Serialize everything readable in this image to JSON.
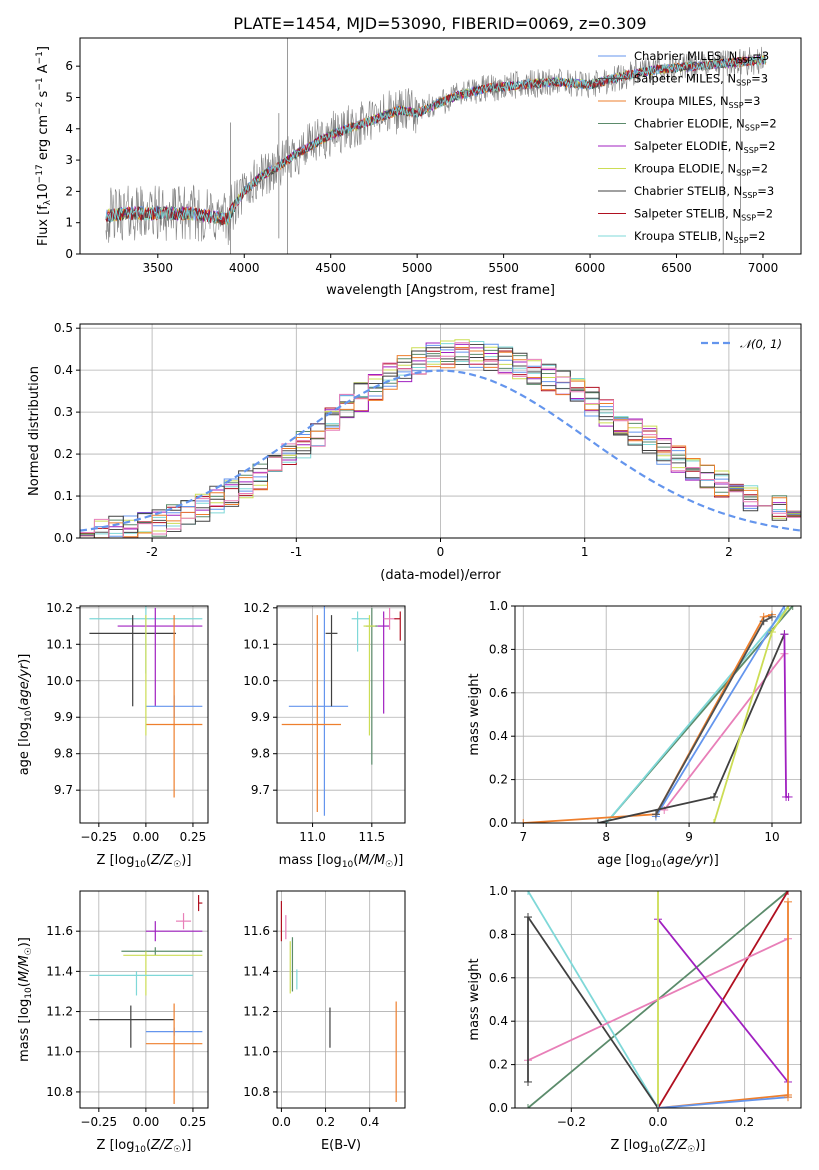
{
  "figure": {
    "title": "PLATE=1454, MJD=53090, FIBERID=0069, z=0.309"
  },
  "colors": {
    "grid": "#b0b0b0",
    "data_spectrum": "#808080",
    "Chabrier MILES": "#6495ed",
    "Salpeter MILES": "#4f4f4f",
    "Kroupa MILES": "#ee7f2d",
    "Chabrier ELODIE": "#5b8b6b",
    "Salpeter ELODIE": "#a020c0",
    "Kroupa ELODIE": "#ccdd55",
    "Chabrier STELIB": "#404040",
    "Salpeter STELIB": "#b01020",
    "Kroupa STELIB": "#7fd8d8",
    "extra_pink": "#e87fb8"
  },
  "chart_data": [
    {
      "id": "spectrum",
      "type": "line",
      "title": "PLATE=1454, MJD=53090, FIBERID=0069, z=0.309",
      "xlabel": "wavelength [Angstrom, rest frame]",
      "ylabel": "Flux [f_λ 10^-17 erg cm^-2 s^-1 A^-1]",
      "xlim": [
        3050,
        7220
      ],
      "ylim": [
        0,
        6.9
      ],
      "xticks": [
        3500,
        4000,
        4500,
        5000,
        5500,
        6000,
        6500,
        7000
      ],
      "yticks": [
        0,
        1,
        2,
        3,
        4,
        5,
        6
      ],
      "grid": false,
      "legend_position": "right",
      "series": [
        {
          "name": "Chabrier MILES",
          "sub": "SSP",
          "eq": "=3"
        },
        {
          "name": "Salpeter MILES",
          "sub": "SSP",
          "eq": "=3"
        },
        {
          "name": "Kroupa MILES",
          "sub": "SSP",
          "eq": "=3"
        },
        {
          "name": "Chabrier ELODIE",
          "sub": "SSP",
          "eq": "=2"
        },
        {
          "name": "Salpeter ELODIE",
          "sub": "SSP",
          "eq": "=2"
        },
        {
          "name": "Kroupa ELODIE",
          "sub": "SSP",
          "eq": "=2"
        },
        {
          "name": "Chabrier STELIB",
          "sub": "SSP",
          "eq": "=3"
        },
        {
          "name": "Salpeter STELIB",
          "sub": "SSP",
          "eq": "=2"
        },
        {
          "name": "Kroupa STELIB",
          "sub": "SSP",
          "eq": "=2"
        }
      ],
      "continuum": {
        "x": [
          3200,
          3300,
          3500,
          3700,
          3800,
          3900,
          3950,
          4000,
          4100,
          4200,
          4300,
          4500,
          4700,
          4900,
          5000,
          5200,
          5400,
          5600,
          5800,
          6000,
          6200,
          6400,
          6600,
          6800,
          7000
        ],
        "y": [
          1.2,
          1.3,
          1.3,
          1.3,
          1.2,
          1.1,
          1.6,
          2.0,
          2.5,
          2.8,
          3.2,
          3.8,
          4.2,
          4.6,
          4.5,
          5.0,
          5.3,
          5.4,
          5.5,
          5.4,
          5.7,
          5.9,
          6.0,
          6.1,
          6.2
        ]
      }
    },
    {
      "id": "residuals",
      "type": "histogram",
      "xlabel": "(data-model)/error",
      "ylabel": "Normed distribution",
      "xlim": [
        -2.5,
        2.5
      ],
      "ylim": [
        0,
        0.51
      ],
      "xticks": [
        -2,
        -1,
        0,
        1,
        2
      ],
      "yticks": [
        0.0,
        0.1,
        0.2,
        0.3,
        0.4,
        0.5
      ],
      "grid": true,
      "legend_position": "upper right",
      "gaussian_legend": "𝒩(0, 1)",
      "bin_width": 0.1,
      "bin_start": -2.5
    },
    {
      "id": "age-vs-metallicity",
      "type": "scatter",
      "xlabel": "Z [log10(Z/Z☉)]",
      "ylabel": "age [log10(age/yr)]",
      "xlim": [
        -0.35,
        0.33
      ],
      "ylim": [
        9.61,
        10.205
      ],
      "xticks": [
        -0.25,
        0.0,
        0.25
      ],
      "yticks": [
        9.7,
        9.8,
        9.9,
        10.0,
        10.1,
        10.2
      ],
      "grid": true,
      "errorbars": [
        {
          "series": "Kroupa STELIB",
          "x": 0.0,
          "y": 10.17,
          "xerr": [
            0.3,
            0.3
          ],
          "yerr": [
            0.15,
            0.05
          ]
        },
        {
          "series": "Chabrier STELIB",
          "x": -0.07,
          "y": 10.13,
          "xerr": [
            0.23,
            0.23
          ],
          "yerr": [
            0.2,
            0.05
          ]
        },
        {
          "series": "Salpeter ELODIE",
          "x": 0.05,
          "y": 10.15,
          "xerr": [
            0.2,
            0.25
          ],
          "yerr": [
            0.22,
            0.05
          ]
        },
        {
          "series": "Chabrier MILES",
          "x": 0.15,
          "y": 9.93,
          "xerr": [
            0.15,
            0.15
          ],
          "yerr": [
            0.03,
            0.03
          ]
        },
        {
          "series": "Kroupa MILES",
          "x": 0.15,
          "y": 9.88,
          "xerr": [
            0.15,
            0.15
          ],
          "yerr": [
            0.2,
            0.3
          ]
        },
        {
          "series": "Kroupa ELODIE",
          "x": 0.0,
          "y": 10.15,
          "xerr": [
            0.0,
            0.0
          ],
          "yerr": [
            0.3,
            0.03
          ]
        }
      ]
    },
    {
      "id": "age-vs-mass",
      "type": "scatter",
      "xlabel": "mass [log10(M/M☉)]",
      "ylabel": "",
      "xlim": [
        10.7,
        11.78
      ],
      "ylim": [
        9.61,
        10.205
      ],
      "xticks": [
        11.0,
        11.5
      ],
      "yticks": [
        9.7,
        9.8,
        9.9,
        10.0,
        10.1,
        10.2
      ],
      "grid": true,
      "errorbars": [
        {
          "series": "Chabrier MILES",
          "x": 11.1,
          "y": 9.93,
          "xerr": [
            0.3,
            0.2
          ],
          "yerr": [
            0.3,
            0.3
          ]
        },
        {
          "series": "Kroupa MILES",
          "x": 11.04,
          "y": 9.88,
          "xerr": [
            0.3,
            0.2
          ],
          "yerr": [
            0.24,
            0.3
          ]
        },
        {
          "series": "Chabrier STELIB",
          "x": 11.16,
          "y": 10.13,
          "xerr": [
            0.05,
            0.05
          ],
          "yerr": [
            0.2,
            0.05
          ]
        },
        {
          "series": "Kroupa STELIB",
          "x": 11.38,
          "y": 10.17,
          "xerr": [
            0.05,
            0.1
          ],
          "yerr": [
            0.09,
            0.02
          ]
        },
        {
          "series": "Chabrier ELODIE",
          "x": 11.5,
          "y": 10.15,
          "xerr": [
            0.05,
            0.05
          ],
          "yerr": [
            0.38,
            0.05
          ]
        },
        {
          "series": "Kroupa ELODIE",
          "x": 11.48,
          "y": 10.15,
          "xerr": [
            0.05,
            0.05
          ],
          "yerr": [
            0.3,
            0.03
          ]
        },
        {
          "series": "Salpeter ELODIE",
          "x": 11.6,
          "y": 10.15,
          "xerr": [
            0.05,
            0.05
          ],
          "yerr": [
            0.24,
            0.04
          ]
        },
        {
          "series": "extra_pink",
          "x": 11.65,
          "y": 10.17,
          "xerr": [
            0.05,
            0.05
          ],
          "yerr": [
            0.03,
            0.03
          ]
        },
        {
          "series": "Salpeter STELIB",
          "x": 11.74,
          "y": 10.17,
          "xerr": [
            0.05,
            0.0
          ],
          "yerr": [
            0.06,
            0.02
          ]
        }
      ]
    },
    {
      "id": "mass-weight-vs-age",
      "type": "line",
      "xlabel": "age [log10(age/yr)]",
      "ylabel": "mass weight",
      "xlim": [
        6.9,
        10.35
      ],
      "ylim": [
        0,
        1
      ],
      "xticks": [
        7,
        8,
        9,
        10
      ],
      "yticks": [
        0.0,
        0.2,
        0.4,
        0.6,
        0.8,
        1.0
      ],
      "grid": true,
      "series": [
        {
          "key": "Chabrier ELODIE",
          "x": [
            8.0,
            10.25
          ],
          "y": [
            0.0,
            1.0
          ]
        },
        {
          "key": "Kroupa STELIB",
          "x": [
            8.0,
            10.2
          ],
          "y": [
            0.0,
            1.0
          ]
        },
        {
          "key": "Chabrier MILES",
          "x": [
            8.6,
            10.15
          ],
          "y": [
            0.03,
            1.0
          ]
        },
        {
          "key": "Kroupa MILES",
          "x": [
            7.0,
            8.6,
            9.9,
            10.0
          ],
          "y": [
            0.0,
            0.04,
            0.95,
            0.96
          ]
        },
        {
          "key": "Salpeter MILES",
          "x": [
            8.6,
            9.9,
            10.0
          ],
          "y": [
            0.04,
            0.93,
            0.95
          ]
        },
        {
          "key": "extra_pink",
          "x": [
            8.7,
            10.15
          ],
          "y": [
            0.06,
            0.78
          ]
        },
        {
          "key": "Chabrier STELIB",
          "x": [
            7.9,
            9.3,
            10.15
          ],
          "y": [
            0.0,
            0.12,
            0.87
          ]
        },
        {
          "key": "Kroupa ELODIE",
          "x": [
            9.3,
            10.0,
            10.2
          ],
          "y": [
            0.0,
            0.88,
            1.0
          ]
        },
        {
          "key": "Salpeter ELODIE",
          "x": [
            10.15,
            10.17,
            10.2
          ],
          "y": [
            0.87,
            0.12,
            0.12
          ]
        }
      ]
    },
    {
      "id": "mass-vs-metallicity",
      "type": "scatter",
      "xlabel": "Z [log10(Z/Z☉)]",
      "ylabel": "mass [log10(M/M☉)]",
      "xlim": [
        -0.35,
        0.33
      ],
      "ylim": [
        10.72,
        11.8
      ],
      "xticks": [
        -0.25,
        0.0,
        0.25
      ],
      "yticks": [
        10.8,
        11.0,
        11.2,
        11.4,
        11.6
      ],
      "grid": true,
      "errorbars": [
        {
          "series": "Salpeter ELODIE",
          "x": 0.05,
          "y": 11.6,
          "xerr": [
            0.05,
            0.25
          ],
          "yerr": [
            0.05,
            0.05
          ]
        },
        {
          "series": "extra_pink",
          "x": 0.2,
          "y": 11.65,
          "xerr": [
            0.04,
            0.04
          ],
          "yerr": [
            0.04,
            0.04
          ]
        },
        {
          "series": "Salpeter STELIB",
          "x": 0.28,
          "y": 11.74,
          "xerr": [
            0.0,
            0.02
          ],
          "yerr": [
            0.04,
            0.04
          ]
        },
        {
          "series": "Chabrier ELODIE",
          "x": 0.05,
          "y": 11.5,
          "xerr": [
            0.18,
            0.25
          ],
          "yerr": [
            0.02,
            0.02
          ]
        },
        {
          "series": "Kroupa ELODIE",
          "x": 0.0,
          "y": 11.48,
          "xerr": [
            0.12,
            0.3
          ],
          "yerr": [
            0.2,
            0.02
          ]
        },
        {
          "series": "Kroupa STELIB",
          "x": -0.05,
          "y": 11.38,
          "xerr": [
            0.25,
            0.3
          ],
          "yerr": [
            0.1,
            0.02
          ]
        },
        {
          "series": "Chabrier STELIB",
          "x": -0.08,
          "y": 11.16,
          "xerr": [
            0.22,
            0.23
          ],
          "yerr": [
            0.14,
            0.07
          ]
        },
        {
          "series": "Chabrier MILES",
          "x": 0.15,
          "y": 11.1,
          "xerr": [
            0.15,
            0.15
          ],
          "yerr": [
            0.02,
            0.02
          ]
        },
        {
          "series": "Kroupa MILES",
          "x": 0.15,
          "y": 11.04,
          "xerr": [
            0.15,
            0.15
          ],
          "yerr": [
            0.3,
            0.2
          ]
        }
      ]
    },
    {
      "id": "mass-vs-ebv",
      "type": "scatter",
      "xlabel": "E(B-V)",
      "ylabel": "",
      "xlim": [
        -0.02,
        0.56
      ],
      "ylim": [
        10.72,
        11.8
      ],
      "xticks": [
        0.0,
        0.2,
        0.4
      ],
      "yticks": [
        10.8,
        11.0,
        11.2,
        11.4,
        11.6
      ],
      "grid": true,
      "errorbars": [
        {
          "series": "Salpeter STELIB",
          "x": 0.0,
          "y": 11.65,
          "xerr": [
            0,
            0
          ],
          "yerr": [
            0.1,
            0.1
          ]
        },
        {
          "series": "extra_pink",
          "x": 0.02,
          "y": 11.62,
          "xerr": [
            0,
            0
          ],
          "yerr": [
            0.06,
            0.06
          ]
        },
        {
          "series": "Kroupa ELODIE",
          "x": 0.04,
          "y": 11.47,
          "xerr": [
            0,
            0
          ],
          "yerr": [
            0.18,
            0.08
          ]
        },
        {
          "series": "Chabrier ELODIE",
          "x": 0.05,
          "y": 11.45,
          "xerr": [
            0,
            0
          ],
          "yerr": [
            0.15,
            0.12
          ]
        },
        {
          "series": "Kroupa STELIB",
          "x": 0.07,
          "y": 11.36,
          "xerr": [
            0,
            0
          ],
          "yerr": [
            0.05,
            0.05
          ]
        },
        {
          "series": "Chabrier STELIB",
          "x": 0.22,
          "y": 11.12,
          "xerr": [
            0,
            0
          ],
          "yerr": [
            0.1,
            0.1
          ]
        },
        {
          "series": "Kroupa MILES",
          "x": 0.52,
          "y": 11.0,
          "xerr": [
            0,
            0
          ],
          "yerr": [
            0.25,
            0.25
          ]
        }
      ]
    },
    {
      "id": "mass-weight-vs-metallicity",
      "type": "line",
      "xlabel": "Z [log10(Z/Z☉)]",
      "ylabel": "mass weight",
      "xlim": [
        -0.33,
        0.33
      ],
      "ylim": [
        0,
        1
      ],
      "xticks": [
        -0.2,
        0.0,
        0.2
      ],
      "yticks": [
        0.0,
        0.2,
        0.4,
        0.6,
        0.8,
        1.0
      ],
      "grid": true,
      "series": [
        {
          "key": "Chabrier ELODIE",
          "x": [
            -0.3,
            0.3
          ],
          "y": [
            0.0,
            1.0
          ]
        },
        {
          "key": "Salpeter STELIB",
          "x": [
            0.0,
            0.3
          ],
          "y": [
            0.0,
            1.0
          ]
        },
        {
          "key": "Kroupa STELIB",
          "x": [
            -0.3,
            0.0
          ],
          "y": [
            1.0,
            0.0
          ]
        },
        {
          "key": "Chabrier STELIB",
          "x": [
            -0.3,
            0.0
          ],
          "y": [
            0.88,
            0.0
          ]
        },
        {
          "key": "extra_pink",
          "x": [
            -0.3,
            0.3
          ],
          "y": [
            0.22,
            0.78
          ]
        },
        {
          "key": "Salpeter ELODIE",
          "x": [
            0.0,
            0.3
          ],
          "y": [
            0.87,
            0.12
          ]
        },
        {
          "key": "Kroupa ELODIE",
          "x": [
            0.0,
            0.0
          ],
          "y": [
            0.0,
            1.0
          ]
        },
        {
          "key": "Kroupa MILES",
          "x": [
            0.0,
            0.3
          ],
          "y": [
            0.0,
            0.06
          ]
        },
        {
          "key": "Chabrier MILES",
          "x": [
            0.0,
            0.3
          ],
          "y": [
            0.0,
            0.05
          ]
        },
        {
          "key": "Kroupa MILES",
          "x": [
            0.3,
            0.3
          ],
          "y": [
            0.05,
            0.95
          ]
        },
        {
          "key": "Chabrier STELIB",
          "x": [
            -0.3,
            -0.3
          ],
          "y": [
            0.12,
            0.88
          ]
        }
      ]
    }
  ]
}
